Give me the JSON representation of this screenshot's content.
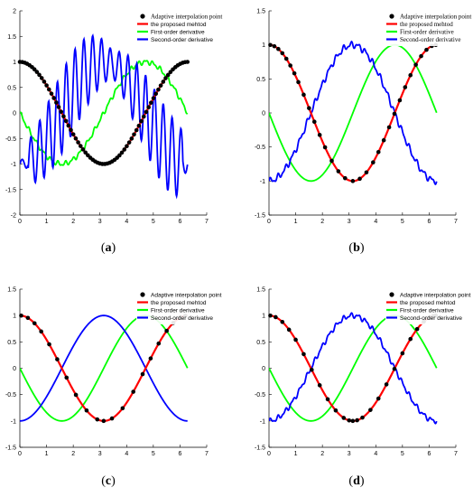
{
  "panels": [
    {
      "caption_open": "(",
      "caption_letter": "a",
      "caption_close": ")"
    },
    {
      "caption_open": "(",
      "caption_letter": "b",
      "caption_close": ")"
    },
    {
      "caption_open": "(",
      "caption_letter": "c",
      "caption_close": ")"
    },
    {
      "caption_open": "(",
      "caption_letter": "d",
      "caption_close": ")"
    }
  ],
  "chart_data": [
    {
      "type": "line",
      "title": "",
      "xlim": [
        0,
        7
      ],
      "ylim": [
        -2,
        2
      ],
      "xticks": [
        "0",
        "1",
        "2",
        "3",
        "4",
        "5",
        "6",
        "7"
      ],
      "yticks": [
        "-2",
        "-1.5",
        "-1",
        "-0.5",
        "0",
        "0.5",
        "1",
        "1.5",
        "2"
      ],
      "yticks_values": [
        -2,
        -1.5,
        -1,
        -0.5,
        0,
        0.5,
        1,
        1.5,
        2
      ],
      "legend": [
        "Adaptive interpolation point",
        "the proposed mehtod",
        "First-order derivative",
        "Second-order derivative"
      ],
      "legend_font": "serif-sans",
      "series": [
        {
          "name": "Adaptive interpolation point",
          "function": "cos(x)",
          "x_range": [
            0,
            6.28
          ],
          "count": 70,
          "color": "#000000"
        },
        {
          "name": "the proposed mehtod",
          "function": "cos(x)",
          "x_range": [
            0,
            6.28
          ],
          "color": "#ff0000"
        },
        {
          "name": "First-order derivative",
          "function": "-sin(x)",
          "x_range": [
            0,
            6.28
          ],
          "noise": "small",
          "color": "#00ff00"
        },
        {
          "name": "Second-order derivative",
          "function": "-cos(x)",
          "x_range": [
            0,
            6.28
          ],
          "noise": "large oscillation",
          "color": "#0000ff"
        }
      ]
    },
    {
      "type": "line",
      "title": "",
      "xlim": [
        0,
        7
      ],
      "ylim": [
        -1.5,
        1.5
      ],
      "xticks": [
        "0",
        "1",
        "2",
        "3",
        "4",
        "5",
        "6",
        "7"
      ],
      "yticks": [
        "-1.5",
        "-1",
        "-0.5",
        "0",
        "0.5",
        "1",
        "1.5"
      ],
      "yticks_values": [
        -1.5,
        -1,
        -0.5,
        0,
        0.5,
        1,
        1.5
      ],
      "legend": [
        "Adaptive interpolation point",
        "the proposed mehtod",
        "First-order derivative",
        "Second-order derivative"
      ],
      "legend_font": "serif",
      "series": [
        {
          "name": "Adaptive interpolation point",
          "function": "cos(x)",
          "x_values": [
            0.05,
            0.2,
            0.35,
            0.5,
            0.65,
            0.8,
            0.95,
            1.1,
            1.3,
            1.5,
            1.7,
            1.9,
            2.1,
            2.35,
            2.6,
            2.85,
            3.14,
            3.4,
            3.65,
            3.9,
            4.1,
            4.3,
            4.5,
            4.7,
            4.9,
            5.1,
            5.3,
            5.5,
            5.7,
            5.9,
            6.1,
            6.25
          ],
          "color": "#000000"
        },
        {
          "name": "the proposed mehtod",
          "function": "cos(x)",
          "x_range": [
            0,
            6.28
          ],
          "color": "#ff0000"
        },
        {
          "name": "First-order derivative",
          "function": "-sin(x)",
          "x_range": [
            0,
            6.28
          ],
          "color": "#00ff00"
        },
        {
          "name": "Second-order derivative",
          "function": "-cos(x)",
          "x_range": [
            0,
            6.28
          ],
          "noise": "small",
          "color": "#0000ff"
        }
      ]
    },
    {
      "type": "line",
      "title": "",
      "xlim": [
        0,
        7
      ],
      "ylim": [
        -1.5,
        1.5
      ],
      "xticks": [
        "0",
        "1",
        "2",
        "3",
        "4",
        "5",
        "6",
        "7"
      ],
      "yticks": [
        "-1.5",
        "-1",
        "-0.5",
        "0",
        "0.5",
        "1",
        "1.5"
      ],
      "yticks_values": [
        -1.5,
        -1,
        -0.5,
        0,
        0.5,
        1,
        1.5
      ],
      "legend": [
        "Adaptive interpolation point",
        "the proposed mehtod",
        "First-order derivative",
        "Second-order derivative"
      ],
      "legend_font": "sans",
      "series": [
        {
          "name": "Adaptive interpolation point",
          "function": "cos(x)",
          "x_values": [
            0.05,
            0.3,
            0.55,
            0.8,
            1.1,
            1.4,
            1.75,
            2.1,
            2.5,
            2.9,
            3.14,
            3.45,
            3.85,
            4.25,
            4.6,
            4.9,
            5.2,
            5.5,
            5.75,
            6.0,
            6.2
          ],
          "color": "#000000"
        },
        {
          "name": "the proposed mehtod",
          "function": "cos(x)",
          "x_range": [
            0,
            6.28
          ],
          "color": "#ff0000"
        },
        {
          "name": "First-order derivative",
          "function": "-sin(x)",
          "x_range": [
            0,
            6.28
          ],
          "color": "#00ff00"
        },
        {
          "name": "Second-order derivative",
          "function": "-cos(x)",
          "x_range": [
            0,
            6.28
          ],
          "color": "#0000ff"
        }
      ]
    },
    {
      "type": "line",
      "title": "",
      "xlim": [
        0,
        7
      ],
      "ylim": [
        -1.5,
        1.5
      ],
      "xticks": [
        "0",
        "1",
        "2",
        "3",
        "4",
        "5",
        "6",
        "7"
      ],
      "yticks": [
        "-1.5",
        "-1",
        "-0.5",
        "0",
        "0.5",
        "1",
        "1.5"
      ],
      "yticks_values": [
        -1.5,
        -1,
        -0.5,
        0,
        0.5,
        1,
        1.5
      ],
      "legend": [
        "Adaptive interpolation point",
        "the proposed mehtod",
        "First-order derivative",
        "Second-order derivative"
      ],
      "legend_font": "sans",
      "series": [
        {
          "name": "Adaptive interpolation point",
          "function": "cos(x)",
          "x_values": [
            0.05,
            0.25,
            0.5,
            0.75,
            1.0,
            1.3,
            1.6,
            1.9,
            2.2,
            2.5,
            2.8,
            3.0,
            3.14,
            3.3,
            3.5,
            3.8,
            4.1,
            4.4,
            4.7,
            5.0,
            5.3,
            5.55,
            5.8,
            6.0,
            6.15,
            6.25
          ],
          "color": "#000000"
        },
        {
          "name": "the proposed mehtod",
          "function": "cos(x)",
          "x_range": [
            0,
            6.28
          ],
          "color": "#ff0000"
        },
        {
          "name": "First-order derivative",
          "function": "-sin(x)",
          "x_range": [
            0,
            6.28
          ],
          "color": "#00ff00"
        },
        {
          "name": "Second-order derivative",
          "function": "-cos(x)",
          "x_range": [
            0,
            6.28
          ],
          "noise": "small",
          "color": "#0000ff"
        }
      ]
    }
  ]
}
